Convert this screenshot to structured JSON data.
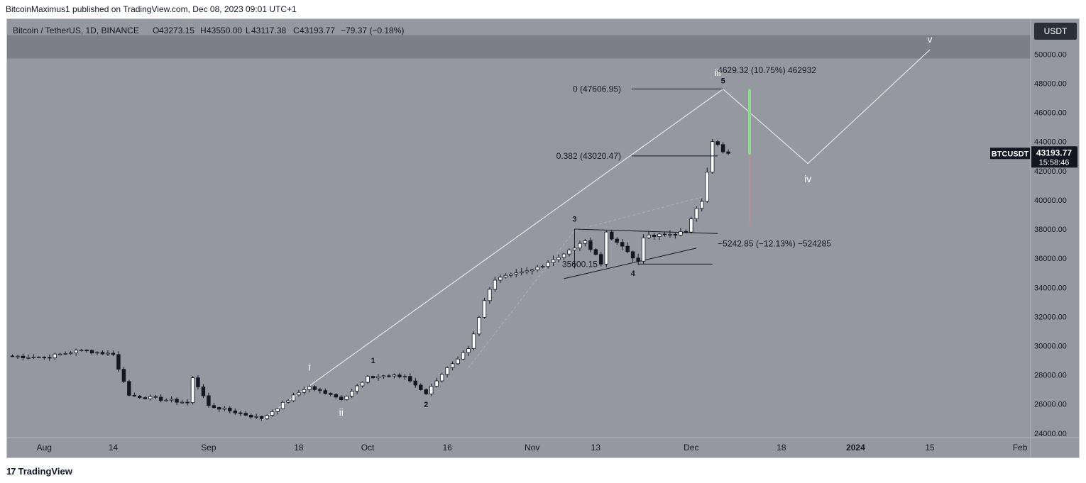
{
  "credit": "BitcoinMaximus1 published on TradingView.com, Dec 08, 2023 09:01 UTC+1",
  "brand": {
    "logo_icon": "tradingview-logo-icon",
    "name": "TradingView"
  },
  "currency_badge": "USDT",
  "colors": {
    "background": "#9598a1",
    "resistance_band": "#7c7f87",
    "up_candle": "#ffffff",
    "down_candle": "#131722",
    "wave_line": "#e6e6e6",
    "measure_green": "#8fd88f",
    "measure_red": "#d4868e",
    "price_tag_bg": "#131722"
  },
  "legend": {
    "symbol": "Bitcoin / TetherUS, 1D, BINANCE",
    "o_label": "O",
    "o_value": "43273.15",
    "h_label": "H",
    "h_value": "43550.00",
    "l_label": "L",
    "l_value": "43117.38",
    "c_label": "C",
    "c_value": "43193.77",
    "change": "−79.37 (−0.18%)"
  },
  "price_tag": {
    "symbol": "BTCUSDT",
    "price": "43193.77",
    "countdown": "15:58:46"
  },
  "chart_data": {
    "type": "candlestick",
    "title": "Bitcoin / TetherUS, 1D, BINANCE",
    "y_axis": {
      "min": 23700,
      "max": 52400,
      "ticks": [
        24000,
        26000,
        28000,
        30000,
        32000,
        34000,
        36000,
        38000,
        40000,
        42000,
        44000,
        46000,
        48000,
        50000
      ],
      "tick_labels": [
        "24000.00",
        "26000.00",
        "28000.00",
        "30000.00",
        "32000.00",
        "34000.00",
        "36000.00",
        "38000.00",
        "40000.00",
        "42000.00",
        "44000.00",
        "46000.00",
        "48000.00",
        "50000.00"
      ]
    },
    "x_axis": {
      "start": "2023-07-25",
      "end": "2024-02-03",
      "ticks": [
        {
          "date": "2023-08-01",
          "label": "Aug"
        },
        {
          "date": "2023-08-14",
          "label": "14"
        },
        {
          "date": "2023-09-01",
          "label": "Sep"
        },
        {
          "date": "2023-09-18",
          "label": "18"
        },
        {
          "date": "2023-10-01",
          "label": "Oct"
        },
        {
          "date": "2023-10-16",
          "label": "16"
        },
        {
          "date": "2023-11-01",
          "label": "Nov"
        },
        {
          "date": "2023-11-13",
          "label": "13"
        },
        {
          "date": "2023-12-01",
          "label": "Dec"
        },
        {
          "date": "2023-12-18",
          "label": "18"
        },
        {
          "date": "2024-01-01",
          "label": "2024"
        },
        {
          "date": "2024-01-15",
          "label": "15"
        },
        {
          "date": "2024-02-01",
          "label": "Feb"
        }
      ]
    },
    "anchors": [
      {
        "date": "2023-07-25",
        "close": 29300
      },
      {
        "date": "2023-08-01",
        "close": 29200
      },
      {
        "date": "2023-08-08",
        "close": 29700
      },
      {
        "date": "2023-08-14",
        "close": 29400
      },
      {
        "date": "2023-08-17",
        "close": 26600
      },
      {
        "date": "2023-08-28",
        "close": 26100
      },
      {
        "date": "2023-08-29",
        "close": 27800
      },
      {
        "date": "2023-09-01",
        "close": 25900
      },
      {
        "date": "2023-09-11",
        "close": 25000
      },
      {
        "date": "2023-09-18",
        "close": 26800
      },
      {
        "date": "2023-09-20",
        "close": 27200
      },
      {
        "date": "2023-09-26",
        "close": 26300
      },
      {
        "date": "2023-10-01",
        "close": 27900
      },
      {
        "date": "2023-10-08",
        "close": 27900
      },
      {
        "date": "2023-10-12",
        "close": 26700
      },
      {
        "date": "2023-10-16",
        "close": 28500
      },
      {
        "date": "2023-10-20",
        "close": 29800
      },
      {
        "date": "2023-10-23",
        "close": 33100
      },
      {
        "date": "2023-10-25",
        "close": 34500
      },
      {
        "date": "2023-11-01",
        "close": 35200
      },
      {
        "date": "2023-11-09",
        "close": 36700
      },
      {
        "date": "2023-11-11",
        "close": 37200
      },
      {
        "date": "2023-11-14",
        "close": 35600
      },
      {
        "date": "2023-11-15",
        "close": 37800
      },
      {
        "date": "2023-11-21",
        "close": 35800
      },
      {
        "date": "2023-11-22",
        "close": 37400
      },
      {
        "date": "2023-11-30",
        "close": 37800
      },
      {
        "date": "2023-12-01",
        "close": 38700
      },
      {
        "date": "2023-12-03",
        "close": 39900
      },
      {
        "date": "2023-12-04",
        "close": 41900
      },
      {
        "date": "2023-12-05",
        "close": 44000
      },
      {
        "date": "2023-12-06",
        "close": 43800
      },
      {
        "date": "2023-12-07",
        "close": 43300
      },
      {
        "date": "2023-12-08",
        "close": 43193.77
      }
    ],
    "resistance_zone": {
      "from": 49700,
      "to": 51300
    },
    "fib_levels": [
      {
        "label": "0 (47606.95)",
        "price": 47606.95
      },
      {
        "label": "0.382 (43020.47)",
        "price": 43020.47
      }
    ],
    "wave_labels": [
      {
        "label": "i",
        "date": "2023-09-20",
        "price": 28300,
        "bold": false
      },
      {
        "label": "ii",
        "date": "2023-09-26",
        "price": 25200,
        "bold": false
      },
      {
        "label": "1",
        "date": "2023-10-02",
        "price": 28800,
        "bold": true
      },
      {
        "label": "2",
        "date": "2023-10-12",
        "price": 25800,
        "bold": true
      },
      {
        "label": "3",
        "date": "2023-11-09",
        "price": 38500,
        "bold": true
      },
      {
        "label": "4",
        "date": "2023-11-20",
        "price": 34800,
        "bold": true
      },
      {
        "label": "5",
        "date": "2023-12-07",
        "price": 48000,
        "bold": true
      },
      {
        "label": "iii",
        "date": "2023-12-06",
        "price": 48500,
        "bold": false
      },
      {
        "label": "iv",
        "date": "2023-12-23",
        "price": 41200,
        "bold": false
      },
      {
        "label": "v",
        "date": "2024-01-15",
        "price": 50800,
        "bold": false
      }
    ],
    "measurements": [
      {
        "label": "4629.32 (10.75%) 462932",
        "date": "2023-12-06",
        "price": 48900
      },
      {
        "label": "−5242.85 (−12.13%) −524285",
        "date": "2023-12-06",
        "price": 37000
      },
      {
        "label": "35600.15",
        "date": "2023-11-10",
        "price": 35600
      }
    ]
  }
}
